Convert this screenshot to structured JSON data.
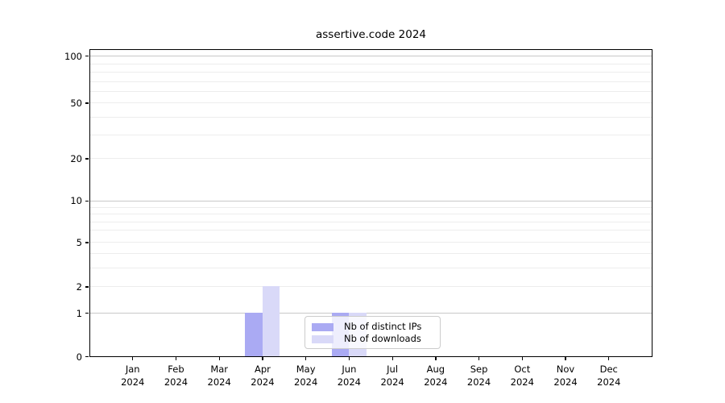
{
  "title": "assertive.code 2024",
  "chart_data": {
    "type": "bar",
    "title": "assertive.code 2024",
    "categories": [
      "Jan",
      "Feb",
      "Mar",
      "Apr",
      "May",
      "Jun",
      "Jul",
      "Aug",
      "Sep",
      "Oct",
      "Nov",
      "Dec"
    ],
    "year_label": "2024",
    "series": [
      {
        "name": "Nb of distinct IPs",
        "color": "#aaaaf3",
        "values": [
          0,
          0,
          0,
          1,
          0,
          1,
          0,
          0,
          0,
          0,
          0,
          0
        ]
      },
      {
        "name": "Nb of downloads",
        "color": "#d9d9f8",
        "values": [
          0,
          0,
          0,
          2,
          0,
          1,
          0,
          0,
          0,
          0,
          0,
          0
        ]
      }
    ],
    "xlabel": "",
    "ylabel": "",
    "y_axis": {
      "scale": "log-like with linear segment to 0",
      "tick_values": [
        100,
        50,
        20,
        10,
        5,
        2,
        1,
        0
      ],
      "tick_labels": [
        "100",
        "50",
        "20",
        "10",
        "5",
        "2",
        "1",
        "0"
      ],
      "minor_gridline_values": [
        2,
        3,
        4,
        5,
        6,
        7,
        8,
        9,
        20,
        30,
        40,
        50,
        60,
        70,
        80,
        90
      ],
      "major_gridline_values": [
        1,
        10,
        100
      ],
      "range": [
        0,
        100
      ]
    },
    "grid": "horizontal, major and minor, grid on",
    "legend_position": "bottom center-left inside plot",
    "colors": {
      "axis": "#000000",
      "grid_major": "#c8c8c8",
      "grid_minor": "#ededed",
      "legend_border": "#cccccc",
      "legend_background": "rgba(255,255,255,0.8)"
    }
  },
  "legend": {
    "entries": [
      {
        "label": "Nb of distinct IPs"
      },
      {
        "label": "Nb of downloads"
      }
    ]
  }
}
